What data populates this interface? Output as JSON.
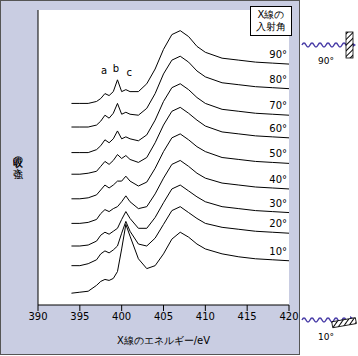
{
  "chart_data": {
    "type": "line",
    "x_label": "X線のエネルギー/eV",
    "y_label": "吸収の強さ",
    "legend_title": "X線の入射角",
    "x": [
      394,
      395,
      396,
      397,
      397.5,
      398,
      398.5,
      399,
      399.5,
      400,
      400.5,
      401,
      402,
      403,
      404,
      405,
      406,
      407,
      408,
      409,
      410,
      412,
      414,
      416,
      418,
      420
    ],
    "xlim": [
      390,
      420
    ],
    "xticks": [
      390,
      395,
      400,
      405,
      410,
      415,
      420
    ],
    "ylim": [
      0,
      300
    ],
    "tick_labels": "x",
    "grid": false,
    "color": "#000000",
    "series": [
      {
        "name": "90°",
        "values": [
          205,
          205,
          205,
          207,
          210,
          215,
          213,
          217,
          229,
          217,
          219,
          217,
          217,
          225,
          240,
          260,
          275,
          279,
          273,
          263,
          257,
          251,
          249,
          247,
          246,
          245
        ]
      },
      {
        "name": "80°",
        "values": [
          181,
          181,
          181,
          183,
          187,
          193,
          190,
          195,
          205,
          194,
          196,
          194,
          193,
          200,
          215,
          235,
          249,
          253,
          247,
          238,
          232,
          226,
          224,
          222,
          221,
          220
        ]
      },
      {
        "name": "70°",
        "values": [
          155,
          155,
          155,
          158,
          162,
          168,
          165,
          169,
          177,
          169,
          171,
          169,
          167,
          173,
          188,
          207,
          221,
          225,
          219,
          211,
          205,
          199,
          197,
          195,
          194,
          193
        ]
      },
      {
        "name": "60°",
        "values": [
          133,
          133,
          134,
          136,
          141,
          146,
          143,
          147,
          153,
          149,
          152,
          148,
          145,
          150,
          165,
          183,
          197,
          201,
          195,
          188,
          182,
          176,
          174,
          172,
          171,
          170
        ]
      },
      {
        "name": "50°",
        "values": [
          108,
          108,
          109,
          112,
          117,
          122,
          119,
          122,
          126,
          126,
          131,
          126,
          121,
          125,
          139,
          156,
          170,
          174,
          168,
          161,
          156,
          150,
          148,
          146,
          145,
          144
        ]
      },
      {
        "name": "40°",
        "values": [
          83,
          83,
          84,
          87,
          93,
          97,
          95,
          98,
          100,
          105,
          111,
          105,
          98,
          100,
          113,
          129,
          143,
          147,
          141,
          134,
          129,
          124,
          122,
          120,
          119,
          118
        ]
      },
      {
        "name": "30°",
        "values": [
          60,
          60,
          61,
          65,
          71,
          74,
          72,
          75,
          78,
          87,
          95,
          88,
          78,
          78,
          89,
          104,
          118,
          122,
          116,
          110,
          105,
          100,
          98,
          96,
          95,
          94
        ]
      },
      {
        "name": "20°",
        "values": [
          40,
          40,
          42,
          46,
          52,
          55,
          53,
          56,
          60,
          73,
          85,
          75,
          62,
          60,
          68,
          82,
          96,
          100,
          94,
          88,
          83,
          79,
          77,
          75,
          74,
          73
        ]
      },
      {
        "name": "10°",
        "values": [
          12,
          13,
          14,
          20,
          24,
          26,
          25,
          27,
          34,
          57,
          82,
          70,
          47,
          37,
          40,
          52,
          67,
          74,
          69,
          62,
          57,
          52,
          49,
          47,
          46,
          45
        ]
      }
    ],
    "annotations": [
      {
        "text": "a",
        "x": 397.9,
        "y": 239
      },
      {
        "text": "b",
        "x": 399.3,
        "y": 241
      },
      {
        "text": "c",
        "x": 400.9,
        "y": 237
      }
    ],
    "diagram_labels": [
      "90°",
      "10°"
    ]
  }
}
